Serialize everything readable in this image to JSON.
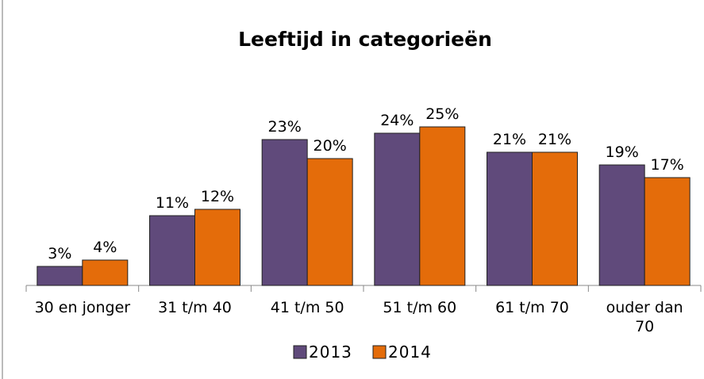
{
  "chart_data": {
    "type": "bar",
    "title": "Leeftijd in categorieën",
    "categories": [
      "30 en jonger",
      "31 t/m 40",
      "41 t/m 50",
      "51 t/m 60",
      "61 t/m 70",
      "ouder dan 70"
    ],
    "series": [
      {
        "name": "2013",
        "color": "#604a7b",
        "values": [
          3,
          11,
          23,
          24,
          21,
          19
        ],
        "value_labels": [
          "3%",
          "11%",
          "23%",
          "24%",
          "21%",
          "19%"
        ]
      },
      {
        "name": "2014",
        "color": "#e46c0a",
        "values": [
          4,
          12,
          20,
          25,
          21,
          17
        ],
        "value_labels": [
          "4%",
          "12%",
          "20%",
          "25%",
          "21%",
          "17%"
        ]
      }
    ],
    "ylim": [
      0,
      30
    ],
    "legend": "bottom"
  }
}
